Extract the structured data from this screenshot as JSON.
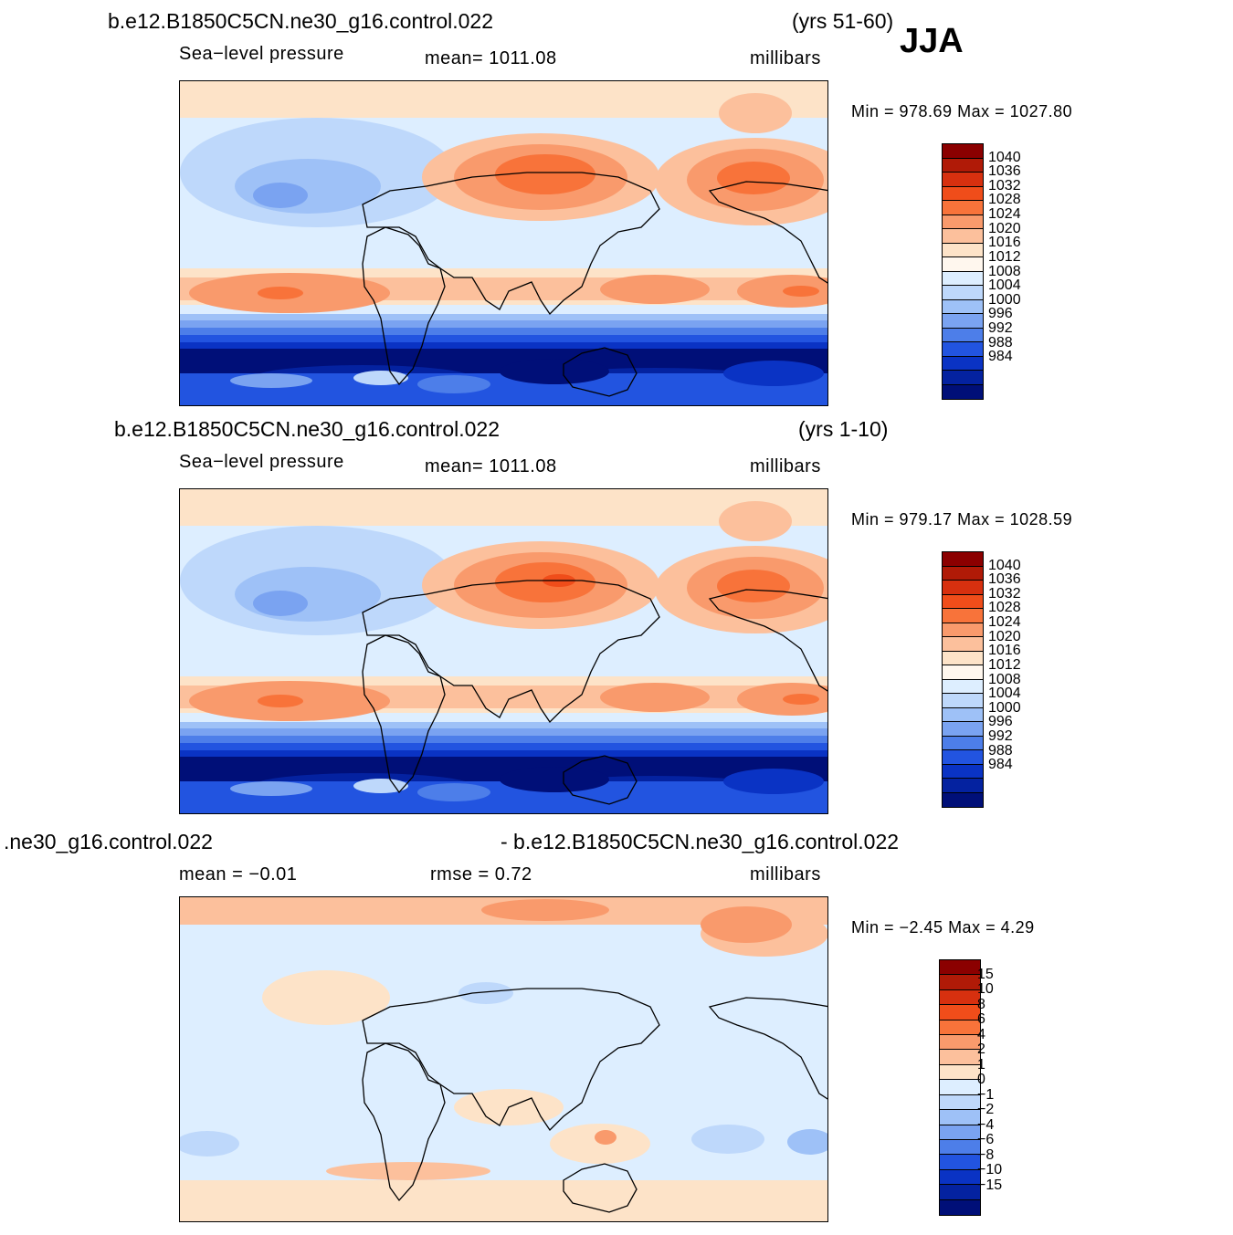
{
  "season": "JJA",
  "panels": [
    {
      "title_left": "b.e12.B1850C5CN.ne30_g16.control.022",
      "title_right": "(yrs 51-60)",
      "sub_left": "Sea−level  pressure",
      "sub_mid": "mean=  1011.08",
      "sub_right": "millibars",
      "minmax": "Min  =  978.69  Max  =  1027.80",
      "colorbar": {
        "labels": [
          "1040",
          "1036",
          "1032",
          "1028",
          "1024",
          "1020",
          "1016",
          "1012",
          "1008",
          "1004",
          "1000",
          "996",
          "992",
          "988",
          "984"
        ],
        "colors": [
          "#8b0000",
          "#b01a07",
          "#d7300f",
          "#f04d1a",
          "#f8733a",
          "#f99a6c",
          "#fcc09c",
          "#fde3c8",
          "#fff7ee",
          "#ddeeff",
          "#bed8fb",
          "#9ec1f7",
          "#7aa3f1",
          "#4d7ee9",
          "#2254e0",
          "#0a33c4",
          "#0422a0",
          "#000f78"
        ]
      },
      "map_style": "slp_a"
    },
    {
      "title_left": "b.e12.B1850C5CN.ne30_g16.control.022",
      "title_right": "(yrs 1-10)",
      "sub_left": "Sea−level  pressure",
      "sub_mid": "mean=  1011.08",
      "sub_right": "millibars",
      "minmax": "Min  =  979.17  Max  =  1028.59",
      "colorbar": {
        "labels": [
          "1040",
          "1036",
          "1032",
          "1028",
          "1024",
          "1020",
          "1016",
          "1012",
          "1008",
          "1004",
          "1000",
          "996",
          "992",
          "988",
          "984"
        ],
        "colors": [
          "#8b0000",
          "#b01a07",
          "#d7300f",
          "#f04d1a",
          "#f8733a",
          "#f99a6c",
          "#fcc09c",
          "#fde3c8",
          "#fff7ee",
          "#ddeeff",
          "#bed8fb",
          "#9ec1f7",
          "#7aa3f1",
          "#4d7ee9",
          "#2254e0",
          "#0a33c4",
          "#0422a0",
          "#000f78"
        ]
      },
      "map_style": "slp_b"
    },
    {
      "title_left": ".ne30_g16.control.022",
      "title_right": "- b.e12.B1850C5CN.ne30_g16.control.022",
      "sub_left": "mean  =    −0.01",
      "sub_mid": "rmse  =     0.72",
      "sub_right": "millibars",
      "minmax": "Min  =    −2.45  Max  =      4.29",
      "colorbar": {
        "labels": [
          "15",
          "10",
          "8",
          "6",
          "4",
          "2",
          "1",
          "0",
          "−1",
          "−2",
          "−4",
          "−6",
          "−8",
          "−10",
          "−15"
        ],
        "colors": [
          "#8b0000",
          "#b01a07",
          "#d7300f",
          "#f04d1a",
          "#f8733a",
          "#f99a6c",
          "#fcc09c",
          "#fde3c8",
          "#ddeeff",
          "#bed8fb",
          "#9ec1f7",
          "#7aa3f1",
          "#4d7ee9",
          "#2254e0",
          "#0a33c4",
          "#0422a0",
          "#000f78"
        ]
      },
      "map_style": "diff"
    }
  ]
}
